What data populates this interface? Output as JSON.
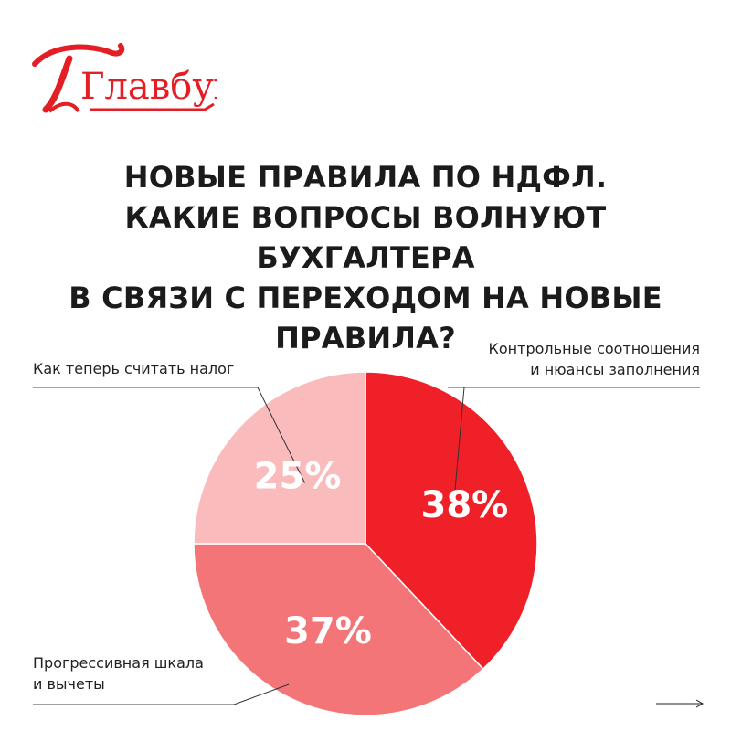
{
  "brand": {
    "logo_text": "Главбух",
    "color": "#e31e24"
  },
  "title_lines": [
    "НОВЫЕ ПРАВИЛА ПО НДФЛ.",
    "КАКИЕ ВОПРОСЫ ВОЛНУЮТ БУХГАЛТЕРА",
    "В СВЯЗИ С ПЕРЕХОДОМ НА НОВЫЕ",
    "ПРАВИЛА?"
  ],
  "chart_data": {
    "type": "pie",
    "start": "top",
    "direction": "clockwise",
    "slices": [
      {
        "label_lines": [
          "Контрольные соотношения",
          "и нюансы заполнения"
        ],
        "value": 38,
        "value_label": "38%",
        "color": "#ef2027"
      },
      {
        "label_lines": [
          "Прогрессивная шкала",
          "и вычеты"
        ],
        "value": 37,
        "value_label": "37%",
        "color": "#f47577"
      },
      {
        "label_lines": [
          "Как теперь считать налог"
        ],
        "value": 25,
        "value_label": "25%",
        "color": "#f9bbbb"
      }
    ]
  }
}
